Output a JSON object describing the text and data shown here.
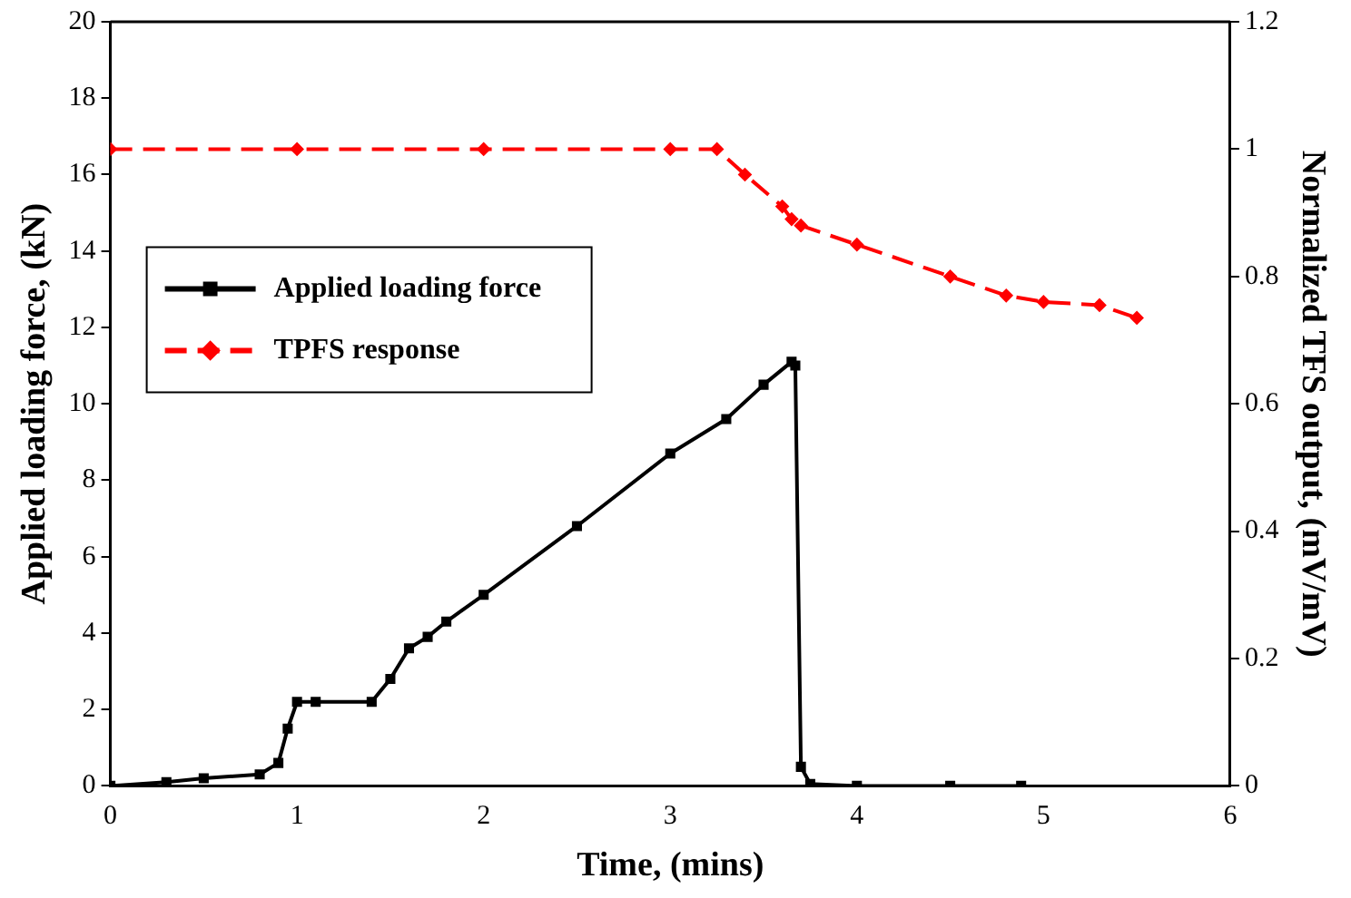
{
  "chart_data": {
    "type": "line",
    "xlabel": "Time, (mins)",
    "ylabel": "Applied loading force, (kN)",
    "y2label": "Normalized TFS output, (mV/mV)",
    "xlim": [
      0,
      6
    ],
    "xticks": [
      0,
      1,
      2,
      3,
      4,
      5,
      6
    ],
    "ylim": [
      0,
      20
    ],
    "yticks": [
      0,
      2,
      4,
      6,
      8,
      10,
      12,
      14,
      16,
      18,
      20
    ],
    "y2lim": [
      0,
      1.2
    ],
    "y2ticks": [
      0,
      0.2,
      0.4,
      0.6,
      0.8,
      1,
      1.2
    ],
    "grid": false,
    "legend": "left",
    "series": [
      {
        "name": "Applied loading force",
        "color": "#000000",
        "marker": "square",
        "line_style": "solid",
        "x": [
          0,
          0.3,
          0.5,
          0.8,
          0.9,
          0.95,
          1.0,
          1.1,
          1.4,
          1.5,
          1.6,
          1.7,
          1.8,
          2.0,
          2.5,
          3.0,
          3.3,
          3.5,
          3.65,
          3.67,
          3.7,
          3.75,
          4.0,
          4.5,
          4.88
        ],
        "values": [
          0,
          0.1,
          0.2,
          0.3,
          0.6,
          1.5,
          2.2,
          2.2,
          2.2,
          2.8,
          3.6,
          3.9,
          4.3,
          5.0,
          6.8,
          8.7,
          9.6,
          10.5,
          11.1,
          11.0,
          0.5,
          0.05,
          0,
          0,
          0
        ]
      },
      {
        "name": "TPFS response",
        "color": "#ff0000",
        "marker": "diamond",
        "line_style": "dashed",
        "axis": "y2",
        "x": [
          0,
          1,
          2,
          3,
          3.25,
          3.4,
          3.6,
          3.65,
          3.7,
          4.0,
          4.5,
          4.8,
          5.0,
          5.3,
          5.5
        ],
        "values": [
          1,
          1,
          1,
          1,
          1,
          0.96,
          0.91,
          0.89,
          0.88,
          0.85,
          0.8,
          0.77,
          0.76,
          0.755,
          0.735
        ]
      }
    ]
  }
}
